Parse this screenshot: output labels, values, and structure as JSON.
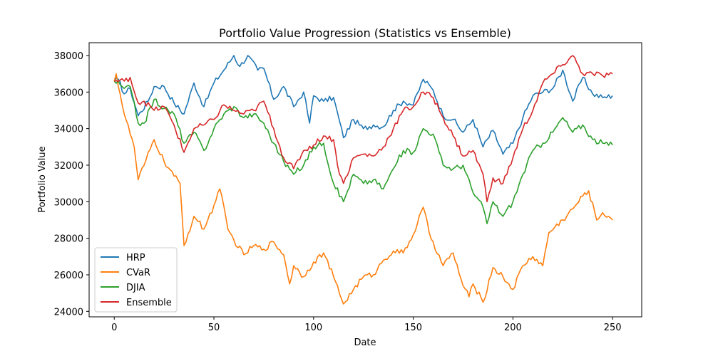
{
  "chart_data": {
    "type": "line",
    "title": "Portfolio Value Progression (Statistics vs Ensemble)",
    "xlabel": "Date",
    "ylabel": "Portfolio Value",
    "xlim": [
      -12.6,
      264.6
    ],
    "ylim": [
      23700,
      38700
    ],
    "xticks": [
      0,
      50,
      100,
      150,
      200,
      250
    ],
    "yticks": [
      24000,
      26000,
      28000,
      30000,
      32000,
      34000,
      36000,
      38000
    ],
    "grid": false,
    "legend_position": "lower-left",
    "x_start": 0,
    "x_end": 250,
    "series": [
      {
        "name": "HRP",
        "color": "#1f77b4",
        "keypoints": [
          [
            0,
            36600
          ],
          [
            2,
            36700
          ],
          [
            5,
            35900
          ],
          [
            8,
            36200
          ],
          [
            12,
            34700
          ],
          [
            17,
            35500
          ],
          [
            20,
            36300
          ],
          [
            25,
            36300
          ],
          [
            30,
            35400
          ],
          [
            35,
            34800
          ],
          [
            40,
            36500
          ],
          [
            45,
            35200
          ],
          [
            50,
            36500
          ],
          [
            55,
            37200
          ],
          [
            60,
            38000
          ],
          [
            63,
            37400
          ],
          [
            67,
            38000
          ],
          [
            72,
            37200
          ],
          [
            75,
            37300
          ],
          [
            80,
            35600
          ],
          [
            85,
            36300
          ],
          [
            90,
            35200
          ],
          [
            95,
            36000
          ],
          [
            98,
            34300
          ],
          [
            100,
            35800
          ],
          [
            105,
            35500
          ],
          [
            110,
            35700
          ],
          [
            115,
            33500
          ],
          [
            120,
            34500
          ],
          [
            125,
            34000
          ],
          [
            130,
            34200
          ],
          [
            135,
            34100
          ],
          [
            140,
            35000
          ],
          [
            145,
            35500
          ],
          [
            150,
            35300
          ],
          [
            155,
            36700
          ],
          [
            160,
            36100
          ],
          [
            165,
            34700
          ],
          [
            170,
            34500
          ],
          [
            175,
            33800
          ],
          [
            180,
            34500
          ],
          [
            185,
            33000
          ],
          [
            190,
            33900
          ],
          [
            195,
            32600
          ],
          [
            200,
            33200
          ],
          [
            205,
            34600
          ],
          [
            210,
            35800
          ],
          [
            215,
            36000
          ],
          [
            220,
            36200
          ],
          [
            225,
            37200
          ],
          [
            230,
            35500
          ],
          [
            235,
            36800
          ],
          [
            240,
            35900
          ],
          [
            245,
            35700
          ],
          [
            250,
            35800
          ]
        ]
      },
      {
        "name": "CVaR",
        "color": "#ff7f0e",
        "keypoints": [
          [
            0,
            36600
          ],
          [
            1,
            37000
          ],
          [
            5,
            34800
          ],
          [
            10,
            33000
          ],
          [
            12,
            31200
          ],
          [
            15,
            32000
          ],
          [
            20,
            33400
          ],
          [
            25,
            32200
          ],
          [
            30,
            31400
          ],
          [
            33,
            31000
          ],
          [
            35,
            27600
          ],
          [
            40,
            29200
          ],
          [
            45,
            28500
          ],
          [
            50,
            29800
          ],
          [
            53,
            30700
          ],
          [
            57,
            28500
          ],
          [
            60,
            27900
          ],
          [
            65,
            27100
          ],
          [
            70,
            27600
          ],
          [
            75,
            27400
          ],
          [
            80,
            27800
          ],
          [
            85,
            27100
          ],
          [
            88,
            25500
          ],
          [
            90,
            26500
          ],
          [
            95,
            25900
          ],
          [
            100,
            26700
          ],
          [
            105,
            27200
          ],
          [
            110,
            25900
          ],
          [
            115,
            24400
          ],
          [
            120,
            25200
          ],
          [
            125,
            25900
          ],
          [
            130,
            26000
          ],
          [
            135,
            26800
          ],
          [
            140,
            27300
          ],
          [
            145,
            27200
          ],
          [
            150,
            28200
          ],
          [
            155,
            29700
          ],
          [
            158,
            28300
          ],
          [
            165,
            26500
          ],
          [
            170,
            27200
          ],
          [
            175,
            25400
          ],
          [
            178,
            24800
          ],
          [
            180,
            25500
          ],
          [
            185,
            24500
          ],
          [
            190,
            26400
          ],
          [
            195,
            25900
          ],
          [
            200,
            25200
          ],
          [
            205,
            26500
          ],
          [
            210,
            27000
          ],
          [
            215,
            26500
          ],
          [
            218,
            28300
          ],
          [
            225,
            29000
          ],
          [
            230,
            29600
          ],
          [
            235,
            30300
          ],
          [
            238,
            30600
          ],
          [
            242,
            29000
          ],
          [
            245,
            29400
          ],
          [
            248,
            29200
          ],
          [
            250,
            29000
          ]
        ]
      },
      {
        "name": "DJIA",
        "color": "#2ca02c",
        "keypoints": [
          [
            0,
            36600
          ],
          [
            3,
            36400
          ],
          [
            5,
            36200
          ],
          [
            8,
            36300
          ],
          [
            12,
            34300
          ],
          [
            15,
            34300
          ],
          [
            20,
            35600
          ],
          [
            25,
            35100
          ],
          [
            30,
            34800
          ],
          [
            35,
            33200
          ],
          [
            40,
            33800
          ],
          [
            45,
            32800
          ],
          [
            50,
            34000
          ],
          [
            55,
            34800
          ],
          [
            60,
            35200
          ],
          [
            65,
            34600
          ],
          [
            70,
            34800
          ],
          [
            75,
            34300
          ],
          [
            80,
            33200
          ],
          [
            85,
            32200
          ],
          [
            90,
            31500
          ],
          [
            95,
            32000
          ],
          [
            100,
            33000
          ],
          [
            105,
            33200
          ],
          [
            110,
            31000
          ],
          [
            115,
            30000
          ],
          [
            120,
            31500
          ],
          [
            125,
            31000
          ],
          [
            130,
            31200
          ],
          [
            135,
            30700
          ],
          [
            140,
            31800
          ],
          [
            145,
            32800
          ],
          [
            150,
            32700
          ],
          [
            155,
            34000
          ],
          [
            160,
            33700
          ],
          [
            165,
            32000
          ],
          [
            170,
            31800
          ],
          [
            175,
            32000
          ],
          [
            180,
            30500
          ],
          [
            185,
            29700
          ],
          [
            187,
            28800
          ],
          [
            190,
            30000
          ],
          [
            195,
            29200
          ],
          [
            200,
            30000
          ],
          [
            205,
            31500
          ],
          [
            210,
            32800
          ],
          [
            215,
            33200
          ],
          [
            220,
            33800
          ],
          [
            225,
            34600
          ],
          [
            230,
            33800
          ],
          [
            235,
            34200
          ],
          [
            240,
            33400
          ],
          [
            245,
            33200
          ],
          [
            250,
            33100
          ]
        ]
      },
      {
        "name": "Ensemble",
        "color": "#d62728",
        "keypoints": [
          [
            0,
            36600
          ],
          [
            5,
            36600
          ],
          [
            8,
            36800
          ],
          [
            12,
            35400
          ],
          [
            15,
            35500
          ],
          [
            20,
            35000
          ],
          [
            25,
            35200
          ],
          [
            30,
            34200
          ],
          [
            35,
            32700
          ],
          [
            40,
            34000
          ],
          [
            45,
            34200
          ],
          [
            50,
            34500
          ],
          [
            55,
            35300
          ],
          [
            60,
            35000
          ],
          [
            65,
            34800
          ],
          [
            70,
            35000
          ],
          [
            75,
            35500
          ],
          [
            80,
            34000
          ],
          [
            85,
            32400
          ],
          [
            90,
            31800
          ],
          [
            95,
            32800
          ],
          [
            100,
            33100
          ],
          [
            105,
            33600
          ],
          [
            110,
            33400
          ],
          [
            113,
            31500
          ],
          [
            115,
            31000
          ],
          [
            120,
            32400
          ],
          [
            125,
            32600
          ],
          [
            130,
            32500
          ],
          [
            135,
            33000
          ],
          [
            140,
            34000
          ],
          [
            145,
            35000
          ],
          [
            150,
            35200
          ],
          [
            155,
            36000
          ],
          [
            160,
            35700
          ],
          [
            165,
            34600
          ],
          [
            170,
            33600
          ],
          [
            175,
            32500
          ],
          [
            180,
            32800
          ],
          [
            185,
            31500
          ],
          [
            187,
            30000
          ],
          [
            190,
            31300
          ],
          [
            195,
            31000
          ],
          [
            200,
            32400
          ],
          [
            205,
            34000
          ],
          [
            210,
            35000
          ],
          [
            215,
            36500
          ],
          [
            220,
            37000
          ],
          [
            225,
            37500
          ],
          [
            230,
            38000
          ],
          [
            235,
            37000
          ],
          [
            240,
            37000
          ],
          [
            245,
            36900
          ],
          [
            250,
            37000
          ]
        ]
      }
    ]
  }
}
